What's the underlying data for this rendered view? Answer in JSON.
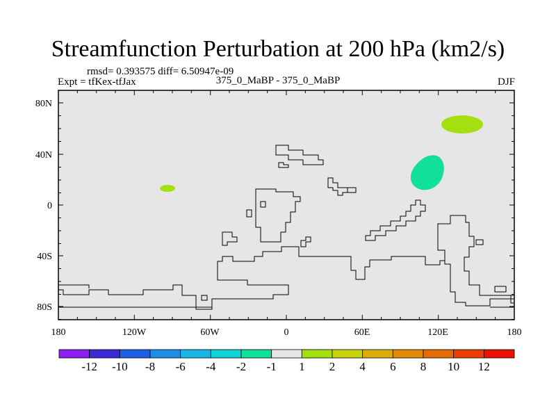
{
  "header": {
    "title": "Streamfunction Perturbation at 200 hPa (km2/s)",
    "stats": "rmsd= 0.393575 diff= 6.50947e-09",
    "expt": "Expt = tfKex-tfJax",
    "subtitle": "375_0_MaBP - 375_0_MaBP",
    "season": "DJF"
  },
  "map": {
    "lat_labels": [
      "80N",
      "40N",
      "0",
      "40S",
      "80S"
    ],
    "lon_labels": [
      "180",
      "120W",
      "60W",
      "0",
      "60E",
      "120E",
      "180"
    ],
    "background_color": "#e6e6e6"
  },
  "colorbar": {
    "labels": [
      "-12",
      "-10",
      "-8",
      "-6",
      "-4",
      "-2",
      "-1",
      "1",
      "2",
      "4",
      "6",
      "8",
      "10",
      "12"
    ],
    "colors": [
      "#8a1ff0",
      "#3a2ad6",
      "#1f5fe6",
      "#1b8ee8",
      "#18b6e2",
      "#13d2d2",
      "#10e09c",
      "#e6e6e6",
      "#a4e010",
      "#c8d40e",
      "#dcac0a",
      "#e08a08",
      "#e66a06",
      "#e83e06",
      "#ea1002"
    ]
  },
  "features": [
    {
      "label": "1",
      "color": "#a4e010"
    },
    {
      "label": "-1",
      "color": "#10e09c"
    },
    {
      "label": "1",
      "color": "#a4e010"
    }
  ]
}
